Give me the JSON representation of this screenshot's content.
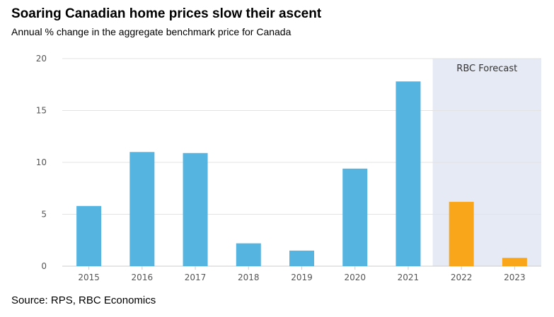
{
  "header": {
    "title": "Soaring Canadian home prices slow their ascent",
    "subtitle": "Annual % change in the aggregate benchmark price for Canada"
  },
  "footer": {
    "source": "Source: RPS, RBC Economics"
  },
  "chart_data": {
    "type": "bar",
    "title": "Soaring Canadian home prices slow their ascent",
    "subtitle": "Annual % change in the aggregate benchmark price for Canada",
    "xlabel": "",
    "ylabel": "",
    "categories": [
      "2015",
      "2016",
      "2017",
      "2018",
      "2019",
      "2020",
      "2021",
      "2022",
      "2023"
    ],
    "values": [
      5.8,
      11.0,
      10.9,
      2.2,
      1.5,
      9.4,
      17.8,
      6.2,
      0.8
    ],
    "forecast_flags": [
      false,
      false,
      false,
      false,
      false,
      false,
      false,
      true,
      true
    ],
    "ylim": [
      0,
      20
    ],
    "yticks": [
      0,
      5,
      10,
      15,
      20
    ],
    "grid": true,
    "forecast_region_label": "RBC Forecast",
    "colors": {
      "actual": "#55B4E0",
      "forecast": "#F9A61A",
      "forecast_band": "#E6EAF4",
      "grid": "#E3E3E3"
    }
  }
}
